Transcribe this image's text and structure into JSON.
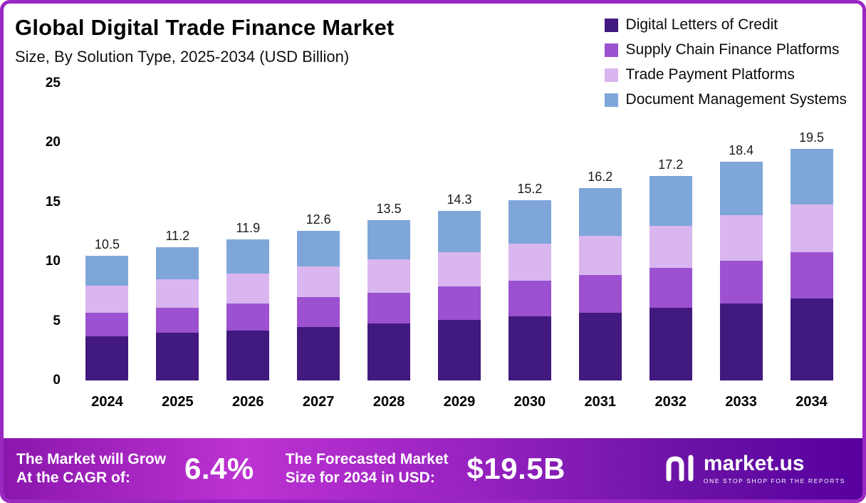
{
  "colors": {
    "page_border": "#9a27c2",
    "footer_gradient_start": "#8b17ad",
    "footer_gradient_end": "#57009e"
  },
  "chart_data": {
    "type": "bar",
    "stacked": true,
    "title": "Global Digital Trade Finance Market",
    "subtitle": "Size, By Solution Type, 2025-2034 (USD Billion)",
    "categories": [
      "2024",
      "2025",
      "2026",
      "2027",
      "2028",
      "2029",
      "2030",
      "2031",
      "2032",
      "2033",
      "2034"
    ],
    "series": [
      {
        "name": "Digital Letters of Credit",
        "color": "#42197f",
        "values": [
          3.7,
          4.0,
          4.2,
          4.5,
          4.8,
          5.1,
          5.4,
          5.7,
          6.1,
          6.5,
          6.9
        ]
      },
      {
        "name": "Supply Chain Finance Platforms",
        "color": "#9b51d0",
        "values": [
          2.0,
          2.1,
          2.3,
          2.5,
          2.6,
          2.8,
          3.0,
          3.2,
          3.4,
          3.6,
          3.9
        ]
      },
      {
        "name": "Trade Payment Platforms",
        "color": "#d9b6ef",
        "values": [
          2.3,
          2.4,
          2.5,
          2.6,
          2.8,
          2.9,
          3.1,
          3.3,
          3.5,
          3.8,
          4.0
        ]
      },
      {
        "name": "Document Management Systems",
        "color": "#7fa6d9",
        "values": [
          2.5,
          2.7,
          2.9,
          3.0,
          3.3,
          3.5,
          3.7,
          4.0,
          4.2,
          4.5,
          4.7
        ]
      }
    ],
    "totals": [
      10.5,
      11.2,
      11.9,
      12.6,
      13.5,
      14.3,
      15.2,
      16.2,
      17.2,
      18.4,
      19.5
    ],
    "xlabel": "",
    "ylabel": "",
    "ylim": [
      0,
      25
    ],
    "yticks": [
      0,
      5,
      10,
      15,
      20,
      25
    ],
    "grid": false,
    "legend_position": "top-right"
  },
  "footer": {
    "cagr_label_lines": [
      "The Market will Grow",
      "At the CAGR of:"
    ],
    "cagr_value": "6.4%",
    "forecast_label_lines": [
      "The Forecasted Market",
      "Size for 2034 in USD:"
    ],
    "forecast_value": "$19.5B",
    "brand": "market.us",
    "brand_tagline": "ONE STOP SHOP FOR THE REPORTS"
  }
}
